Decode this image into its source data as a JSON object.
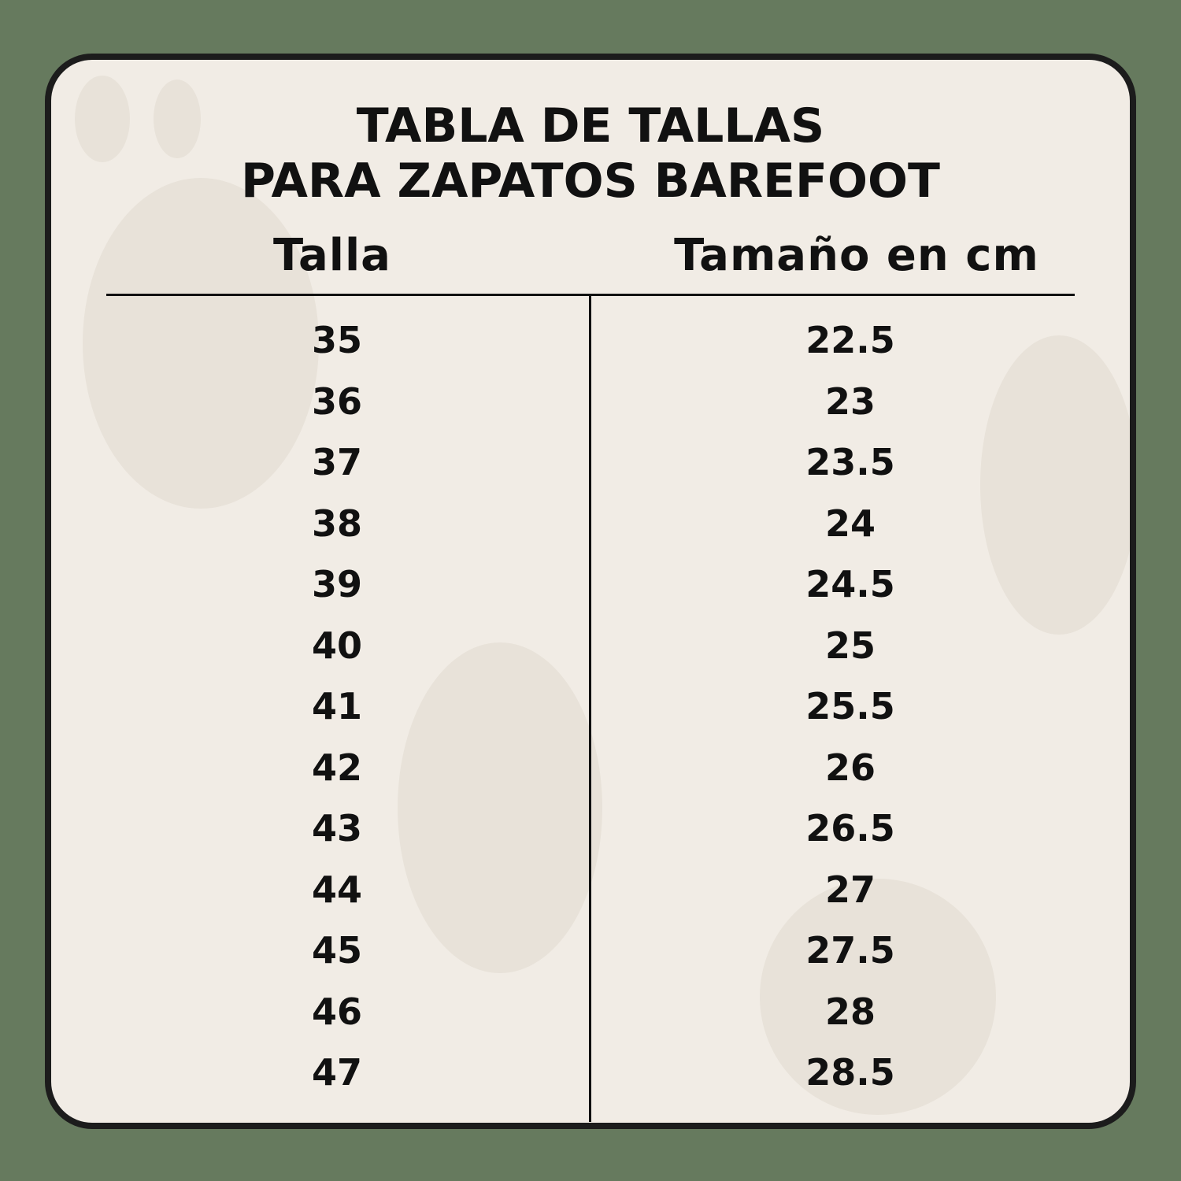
{
  "colors": {
    "background": "#667a5e",
    "card": "#f1ece5",
    "text": "#111111"
  },
  "title": {
    "line1": "TABLA DE TALLAS",
    "line2": "PARA ZAPATOS BAREFOOT"
  },
  "table": {
    "headers": [
      "Talla",
      "Tamaño en cm"
    ],
    "sizes": [
      "35",
      "36",
      "37",
      "38",
      "39",
      "40",
      "41",
      "42",
      "43",
      "44",
      "45",
      "46",
      "47"
    ],
    "cm": [
      "22.5",
      "23",
      "23.5",
      "24",
      "24.5",
      "25",
      "25.5",
      "26",
      "26.5",
      "27",
      "27.5",
      "28",
      "28.5"
    ]
  }
}
